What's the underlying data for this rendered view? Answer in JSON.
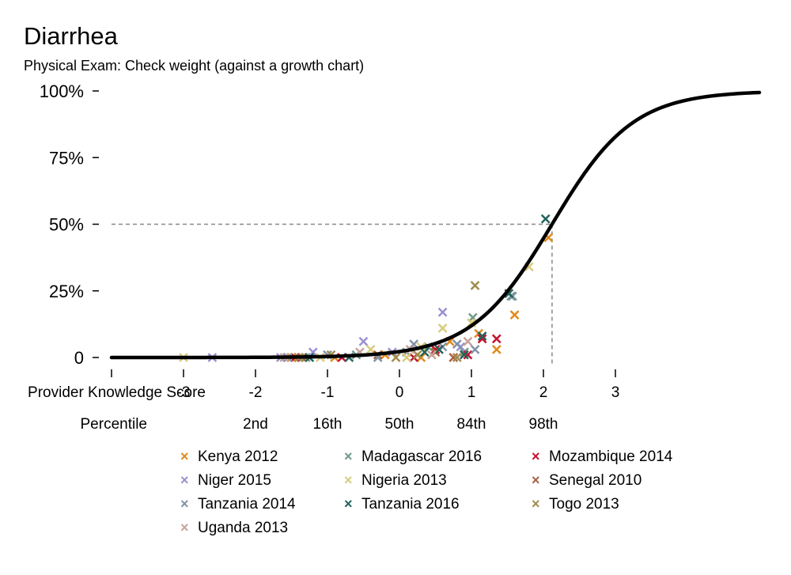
{
  "chart_data": {
    "type": "scatter",
    "title": "Diarrhea",
    "subtitle": "Physical Exam: Check weight (against a growth chart)",
    "xlabel": "Provider Knowledge Score",
    "x_secondary_label": "Percentile",
    "xlim": [
      -4,
      5
    ],
    "ylim": [
      0,
      100
    ],
    "y_ticks": [
      {
        "value": 0,
        "label": "0"
      },
      {
        "value": 25,
        "label": "25%"
      },
      {
        "value": 50,
        "label": "50%"
      },
      {
        "value": 75,
        "label": "75%"
      },
      {
        "value": 100,
        "label": "100%"
      }
    ],
    "x_ticks": [
      {
        "value": -4,
        "label": ""
      },
      {
        "value": -3,
        "label": "-3"
      },
      {
        "value": -2,
        "label": "-2"
      },
      {
        "value": -1,
        "label": "-1"
      },
      {
        "value": 0,
        "label": "0"
      },
      {
        "value": 1,
        "label": "1"
      },
      {
        "value": 2,
        "label": "2"
      },
      {
        "value": 3,
        "label": "3"
      }
    ],
    "percentile_ticks": [
      {
        "value": -2,
        "label": "2nd"
      },
      {
        "value": -1,
        "label": "16th"
      },
      {
        "value": 0,
        "label": "50th"
      },
      {
        "value": 1,
        "label": "84th"
      },
      {
        "value": 2,
        "label": "98th"
      }
    ],
    "curve": {
      "type": "logistic",
      "midpoint": 2.12,
      "scale": 0.56,
      "x_range": [
        -4,
        5
      ]
    },
    "reference": {
      "x": 2.12,
      "y": 50
    },
    "grid": false,
    "legend_position": "bottom",
    "series": [
      {
        "name": "Kenya 2012",
        "color": "#E08A1A",
        "points": [
          [
            -1.5,
            0
          ],
          [
            -0.9,
            0
          ],
          [
            -0.2,
            1
          ],
          [
            0.3,
            0
          ],
          [
            0.7,
            6
          ],
          [
            1.1,
            9
          ],
          [
            1.35,
            3
          ],
          [
            1.6,
            16
          ],
          [
            2.07,
            45
          ]
        ]
      },
      {
        "name": "Madagascar 2016",
        "color": "#6F9A85",
        "points": [
          [
            -1.3,
            0
          ],
          [
            -0.6,
            1
          ],
          [
            0.1,
            2
          ],
          [
            0.4,
            4
          ],
          [
            0.9,
            2
          ],
          [
            1.02,
            15
          ],
          [
            1.57,
            23
          ]
        ]
      },
      {
        "name": "Mozambique 2014",
        "color": "#C8102E",
        "points": [
          [
            -1.45,
            0
          ],
          [
            -0.8,
            0
          ],
          [
            0.2,
            0
          ],
          [
            0.5,
            3
          ],
          [
            0.95,
            1
          ],
          [
            1.15,
            7
          ],
          [
            1.35,
            7
          ]
        ]
      },
      {
        "name": "Niger 2015",
        "color": "#9A91D3",
        "points": [
          [
            -2.6,
            0
          ],
          [
            -1.65,
            0
          ],
          [
            -1.2,
            2
          ],
          [
            -0.5,
            6
          ],
          [
            -0.1,
            2
          ],
          [
            0.6,
            17
          ],
          [
            0.85,
            4
          ]
        ]
      },
      {
        "name": "Nigeria 2013",
        "color": "#D8CC7E",
        "points": [
          [
            -3,
            0
          ],
          [
            -1.1,
            0
          ],
          [
            -0.4,
            3
          ],
          [
            0.1,
            0
          ],
          [
            0.3,
            4
          ],
          [
            0.6,
            11
          ],
          [
            1.0,
            13
          ],
          [
            1.8,
            34
          ]
        ]
      },
      {
        "name": "Senegal 2010",
        "color": "#A9613F",
        "points": [
          [
            -1.35,
            0
          ],
          [
            -0.3,
            1
          ],
          [
            0.5,
            2
          ],
          [
            0.75,
            0
          ]
        ]
      },
      {
        "name": "Tanzania 2014",
        "color": "#8292A8",
        "points": [
          [
            -1.55,
            0
          ],
          [
            -1.0,
            1
          ],
          [
            -0.3,
            0
          ],
          [
            0.2,
            5
          ],
          [
            0.6,
            4
          ],
          [
            0.8,
            5
          ],
          [
            1.05,
            3
          ],
          [
            1.55,
            23
          ]
        ]
      },
      {
        "name": "Tanzania 2016",
        "color": "#23635A",
        "points": [
          [
            -1.25,
            0
          ],
          [
            -0.7,
            0
          ],
          [
            0.35,
            2
          ],
          [
            0.55,
            3
          ],
          [
            0.9,
            1
          ],
          [
            1.15,
            8
          ],
          [
            1.52,
            24
          ],
          [
            2.03,
            52
          ]
        ]
      },
      {
        "name": "Togo 2013",
        "color": "#A08C4C",
        "points": [
          [
            -1.4,
            0
          ],
          [
            -0.95,
            1
          ],
          [
            -0.05,
            0
          ],
          [
            0.25,
            1
          ],
          [
            0.8,
            0
          ],
          [
            1.05,
            27
          ]
        ]
      },
      {
        "name": "Uganda 2013",
        "color": "#C8A29A",
        "points": [
          [
            -1.6,
            0
          ],
          [
            -0.55,
            2
          ],
          [
            0.15,
            3
          ],
          [
            0.45,
            1
          ],
          [
            0.95,
            6
          ]
        ]
      }
    ]
  }
}
